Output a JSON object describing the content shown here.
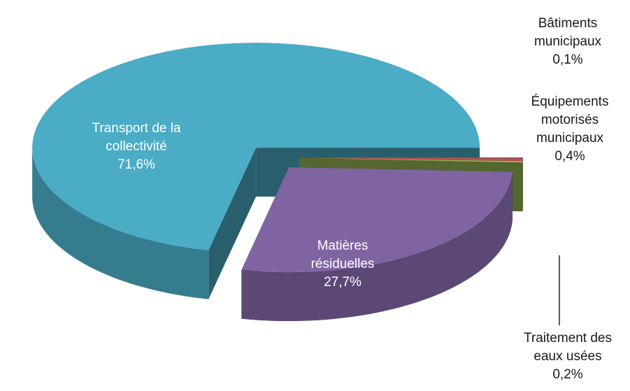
{
  "chart_data": {
    "type": "pie",
    "categories": [
      "Transport de la collectivité",
      "Matières résiduelles",
      "Traitement des eaux usées",
      "Équipements motorisés municipaux",
      "Bâtiments municipaux"
    ],
    "values": [
      71.6,
      27.7,
      0.2,
      0.4,
      0.1
    ],
    "value_labels": [
      "71,6%",
      "27,7%",
      "0,2%",
      "0,4%",
      "0,1%"
    ],
    "colors": [
      "#4bacc6",
      "#8064a2",
      "#9bbb59",
      "#c0504d",
      "#4f81bd"
    ]
  }
}
